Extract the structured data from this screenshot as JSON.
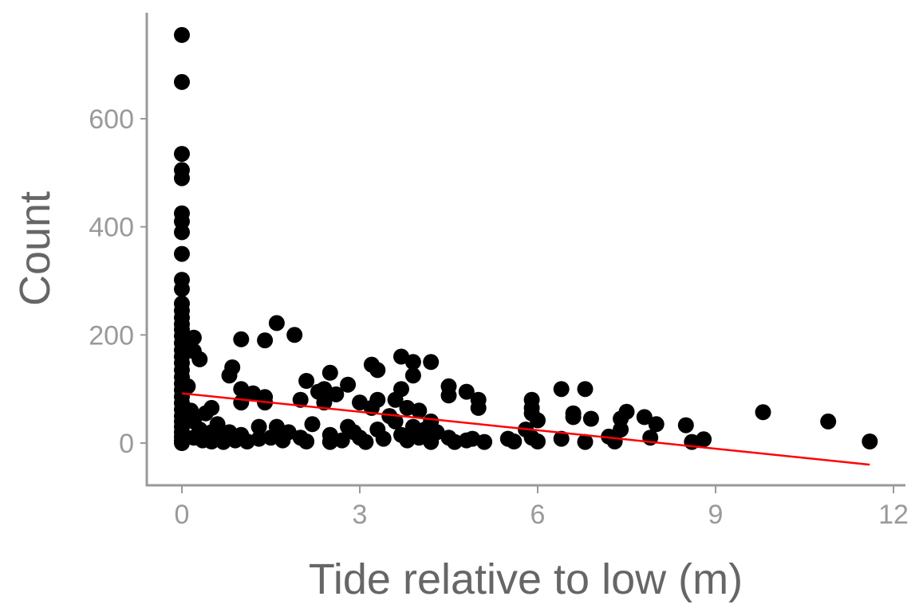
{
  "chart_data": {
    "type": "scatter",
    "title": "",
    "xlabel": "Tide relative to low (m)",
    "ylabel": "Count",
    "xlim": [
      -0.6,
      12.15
    ],
    "ylim": [
      -80,
      790
    ],
    "x_ticks": [
      0,
      3,
      6,
      9,
      12
    ],
    "y_ticks": [
      0,
      200,
      400,
      600
    ],
    "x_tick_labels": [
      "0",
      "3",
      "6",
      "9",
      "12"
    ],
    "y_tick_labels": [
      "0",
      "200",
      "400",
      "600"
    ],
    "grid": false,
    "legend": null,
    "colors": {
      "points": "#000000",
      "trend_line": "#ff0000",
      "axis": "#999999",
      "tick_text": "#9a9a9a",
      "title_text": "#666666"
    },
    "trend_line": {
      "x": [
        0,
        11.6
      ],
      "y": [
        92,
        -40
      ],
      "color": "#ff0000"
    },
    "points": [
      [
        0,
        755
      ],
      [
        0,
        668
      ],
      [
        0,
        535
      ],
      [
        0,
        505
      ],
      [
        0,
        490
      ],
      [
        0,
        425
      ],
      [
        0,
        410
      ],
      [
        0,
        390
      ],
      [
        0,
        350
      ],
      [
        0,
        302
      ],
      [
        0,
        285
      ],
      [
        0,
        258
      ],
      [
        0,
        245
      ],
      [
        0,
        232
      ],
      [
        0,
        220
      ],
      [
        0,
        210
      ],
      [
        0,
        198
      ],
      [
        0,
        185
      ],
      [
        0,
        172
      ],
      [
        0,
        160
      ],
      [
        0,
        148
      ],
      [
        0,
        135
      ],
      [
        0,
        122
      ],
      [
        0,
        110
      ],
      [
        0,
        98
      ],
      [
        0,
        86
      ],
      [
        0,
        74
      ],
      [
        0,
        62
      ],
      [
        0,
        50
      ],
      [
        0,
        40
      ],
      [
        0,
        30
      ],
      [
        0,
        20
      ],
      [
        0,
        12
      ],
      [
        0,
        5
      ],
      [
        0,
        0
      ],
      [
        0.1,
        105
      ],
      [
        0.15,
        60
      ],
      [
        0.2,
        195
      ],
      [
        0.2,
        170
      ],
      [
        0.2,
        40
      ],
      [
        0.2,
        10
      ],
      [
        0.3,
        155
      ],
      [
        0.3,
        25
      ],
      [
        0.35,
        5
      ],
      [
        0.4,
        55
      ],
      [
        0.5,
        65
      ],
      [
        0.5,
        20
      ],
      [
        0.5,
        3
      ],
      [
        0.6,
        35
      ],
      [
        0.7,
        10
      ],
      [
        0.7,
        2
      ],
      [
        0.8,
        125
      ],
      [
        0.8,
        20
      ],
      [
        0.85,
        140
      ],
      [
        0.9,
        5
      ],
      [
        1.0,
        192
      ],
      [
        1.0,
        100
      ],
      [
        1.0,
        75
      ],
      [
        1.0,
        15
      ],
      [
        1.1,
        3
      ],
      [
        1.2,
        92
      ],
      [
        1.3,
        30
      ],
      [
        1.3,
        8
      ],
      [
        1.4,
        190
      ],
      [
        1.4,
        85
      ],
      [
        1.4,
        75
      ],
      [
        1.5,
        10
      ],
      [
        1.6,
        222
      ],
      [
        1.6,
        30
      ],
      [
        1.7,
        5
      ],
      [
        1.8,
        20
      ],
      [
        1.9,
        200
      ],
      [
        2.0,
        80
      ],
      [
        2.0,
        10
      ],
      [
        2.1,
        115
      ],
      [
        2.1,
        3
      ],
      [
        2.2,
        35
      ],
      [
        2.3,
        95
      ],
      [
        2.4,
        75
      ],
      [
        2.4,
        100
      ],
      [
        2.5,
        130
      ],
      [
        2.5,
        15
      ],
      [
        2.5,
        2
      ],
      [
        2.6,
        90
      ],
      [
        2.7,
        5
      ],
      [
        2.8,
        108
      ],
      [
        2.8,
        30
      ],
      [
        2.9,
        20
      ],
      [
        3.0,
        75
      ],
      [
        3.0,
        10
      ],
      [
        3.1,
        2
      ],
      [
        3.2,
        145
      ],
      [
        3.2,
        65
      ],
      [
        3.3,
        135
      ],
      [
        3.3,
        80
      ],
      [
        3.3,
        25
      ],
      [
        3.4,
        8
      ],
      [
        3.5,
        50
      ],
      [
        3.6,
        80
      ],
      [
        3.6,
        40
      ],
      [
        3.7,
        160
      ],
      [
        3.7,
        100
      ],
      [
        3.7,
        15
      ],
      [
        3.8,
        65
      ],
      [
        3.8,
        5
      ],
      [
        3.9,
        150
      ],
      [
        3.9,
        125
      ],
      [
        3.9,
        30
      ],
      [
        4.0,
        60
      ],
      [
        4.0,
        10
      ],
      [
        4.1,
        25
      ],
      [
        4.2,
        150
      ],
      [
        4.2,
        40
      ],
      [
        4.2,
        2
      ],
      [
        4.3,
        20
      ],
      [
        4.5,
        105
      ],
      [
        4.5,
        88
      ],
      [
        4.5,
        10
      ],
      [
        4.6,
        2
      ],
      [
        4.8,
        95
      ],
      [
        4.8,
        5
      ],
      [
        4.9,
        8
      ],
      [
        5.0,
        80
      ],
      [
        5.0,
        65
      ],
      [
        5.1,
        2
      ],
      [
        5.5,
        8
      ],
      [
        5.6,
        3
      ],
      [
        5.8,
        25
      ],
      [
        5.9,
        80
      ],
      [
        5.9,
        65
      ],
      [
        5.9,
        55
      ],
      [
        5.9,
        10
      ],
      [
        6.0,
        42
      ],
      [
        6.0,
        3
      ],
      [
        6.4,
        100
      ],
      [
        6.4,
        8
      ],
      [
        6.6,
        55
      ],
      [
        6.6,
        48
      ],
      [
        6.8,
        100
      ],
      [
        6.8,
        2
      ],
      [
        6.9,
        45
      ],
      [
        7.2,
        12
      ],
      [
        7.3,
        3
      ],
      [
        7.4,
        45
      ],
      [
        7.4,
        25
      ],
      [
        7.5,
        58
      ],
      [
        7.8,
        48
      ],
      [
        7.9,
        10
      ],
      [
        8.0,
        35
      ],
      [
        8.5,
        33
      ],
      [
        8.6,
        2
      ],
      [
        8.8,
        7
      ],
      [
        9.8,
        57
      ],
      [
        10.9,
        40
      ],
      [
        11.6,
        3
      ]
    ]
  },
  "axes": {
    "x_title": "Tide relative to low (m)",
    "y_title": "Count"
  }
}
